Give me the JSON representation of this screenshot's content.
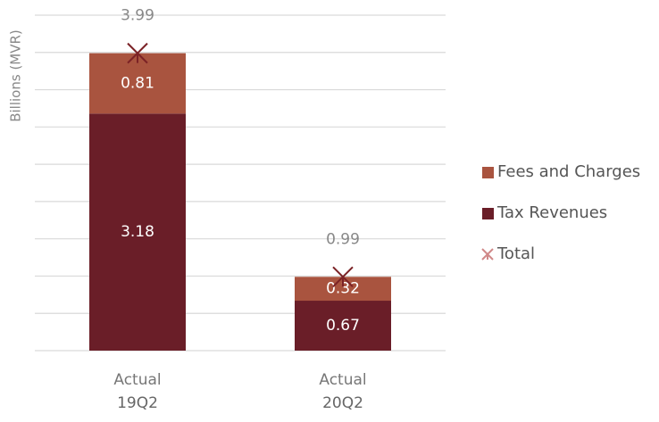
{
  "chart_data": {
    "type": "stacked_bar",
    "y_label": "Billions (MVR)",
    "categories": [
      [
        "Actual",
        "19Q2"
      ],
      [
        "Actual",
        "20Q2"
      ]
    ],
    "series": [
      {
        "name": "Tax Revenues",
        "color": "#6a1e28",
        "values": [
          3.18,
          0.67
        ]
      },
      {
        "name": "Fees and Charges",
        "color": "#a9543f",
        "values": [
          0.81,
          0.32
        ]
      }
    ],
    "total": {
      "name": "Total",
      "color": "#7b2226",
      "values": [
        3.99,
        0.99
      ]
    },
    "ylim": [
      0,
      4.5
    ],
    "yticks": [
      0,
      0.5,
      1,
      1.5,
      2,
      2.5,
      3,
      3.5,
      4,
      4.5
    ],
    "grid": true,
    "legend": "right"
  }
}
